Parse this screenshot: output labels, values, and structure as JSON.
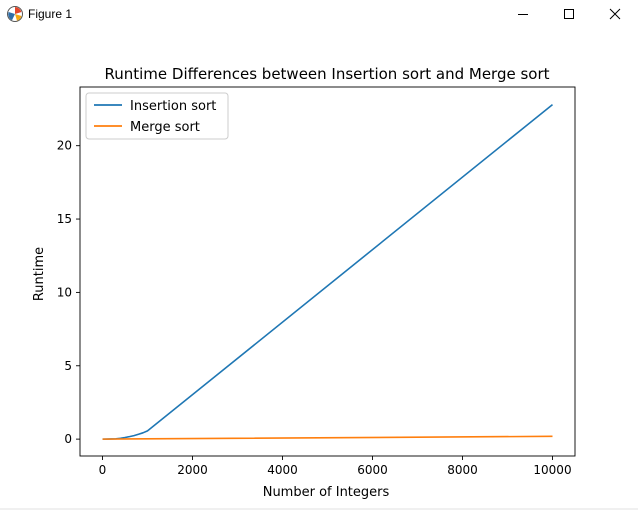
{
  "window": {
    "title": "Figure 1",
    "icons": {
      "app": "matplotlib-icon",
      "minimize": "minimize-icon",
      "maximize": "maximize-icon",
      "close": "close-icon"
    }
  },
  "chart_data": {
    "type": "line",
    "title": "Runtime Differences between Insertion sort and Merge sort",
    "xlabel": "Number of Integers",
    "ylabel": "Runtime",
    "xlim": [
      -500,
      10500
    ],
    "ylim": [
      -1.15,
      24.0
    ],
    "xticks": [
      0,
      2000,
      4000,
      6000,
      8000,
      10000
    ],
    "xtick_labels": [
      "0",
      "2000",
      "4000",
      "6000",
      "8000",
      "10000"
    ],
    "yticks": [
      0,
      5,
      10,
      15,
      20
    ],
    "ytick_labels": [
      "0",
      "5",
      "10",
      "15",
      "20"
    ],
    "grid": false,
    "legend_loc": "upper left",
    "series": [
      {
        "name": "Insertion sort",
        "color": "#1f77b4",
        "x": [
          0,
          100,
          200,
          300,
          400,
          500,
          600,
          700,
          800,
          900,
          1000,
          10000
        ],
        "y": [
          0.0,
          0.003,
          0.01,
          0.02,
          0.06,
          0.11,
          0.17,
          0.24,
          0.33,
          0.43,
          0.56,
          22.8
        ]
      },
      {
        "name": "Merge sort",
        "color": "#ff7f0e",
        "x": [
          0,
          1000,
          10000
        ],
        "y": [
          0.0,
          0.02,
          0.19
        ]
      }
    ]
  }
}
